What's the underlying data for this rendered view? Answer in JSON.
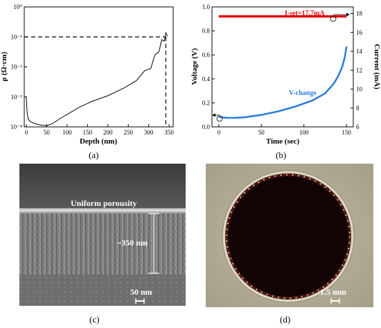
{
  "chart_data": [
    {
      "panel": "a",
      "type": "line",
      "xlabel": "Depth (nm)",
      "ylabel": "ρ (Ω·cm)",
      "xlim": [
        -5,
        360
      ],
      "ylim_log10": [
        -4,
        0
      ],
      "yscale": "log",
      "x_ticks": [
        "0",
        "50",
        "100",
        "150",
        "200",
        "250",
        "300",
        "350"
      ],
      "y_ticks": [
        "10⁰",
        "10⁻¹",
        "10⁻²",
        "10⁻³",
        "10⁻⁴"
      ],
      "series": [
        {
          "x": [
            0,
            2,
            5,
            10,
            20,
            35,
            50,
            65,
            80,
            100,
            130,
            160,
            200,
            240,
            270,
            290,
            305,
            315,
            325,
            332,
            338,
            342,
            346
          ],
          "y": [
            0.001,
            0.0003,
            0.00018,
            0.00015,
            0.00013,
            0.000115,
            0.00011,
            0.00013,
            0.00018,
            0.00026,
            0.00045,
            0.0007,
            0.0011,
            0.002,
            0.0035,
            0.006,
            0.011,
            0.02,
            0.04,
            0.065,
            0.09,
            0.11,
            0.13
          ]
        }
      ],
      "reference_line": {
        "y": 0.1,
        "x": 342
      }
    },
    {
      "panel": "b",
      "type": "line",
      "xlabel": "Time (sec)",
      "ylabel": "Voltage (V)",
      "y2label": "Current (mA)",
      "xlim": [
        -8,
        158
      ],
      "ylim": [
        0,
        1.0
      ],
      "y2lim": [
        6,
        18.7
      ],
      "x_ticks": [
        "0",
        "50",
        "100",
        "150"
      ],
      "y_ticks": [
        "0.0",
        "0.2",
        "0.4",
        "0.6",
        "0.8",
        "1.0"
      ],
      "y2_ticks": [
        "6",
        "8",
        "10",
        "12",
        "14",
        "16",
        "18"
      ],
      "series": [
        {
          "name": "V-change",
          "axis": "left",
          "x": [
            0,
            5,
            10,
            20,
            30,
            50,
            70,
            90,
            110,
            125,
            135,
            140,
            145,
            148,
            150
          ],
          "y": [
            0.085,
            0.078,
            0.075,
            0.076,
            0.08,
            0.1,
            0.13,
            0.17,
            0.22,
            0.28,
            0.36,
            0.42,
            0.5,
            0.58,
            0.67
          ]
        },
        {
          "name": "I-set=17.7mA",
          "axis": "right",
          "x": [
            0,
            150
          ],
          "y": [
            17.7,
            17.7
          ]
        }
      ]
    }
  ],
  "captions": {
    "a": "(a)",
    "b": "(b)",
    "c": "(c)",
    "d": "(d)"
  },
  "annotations": {
    "uniform": "Uniform porousity",
    "thickness": "~350 nm",
    "scale_c": "50 nm",
    "scale_d": "1.5 mm"
  },
  "colors": {
    "current_line": "#e01010",
    "voltage_line": "#2e7fd8",
    "dish_bg": "#b3ac96",
    "disc": "#120305"
  }
}
